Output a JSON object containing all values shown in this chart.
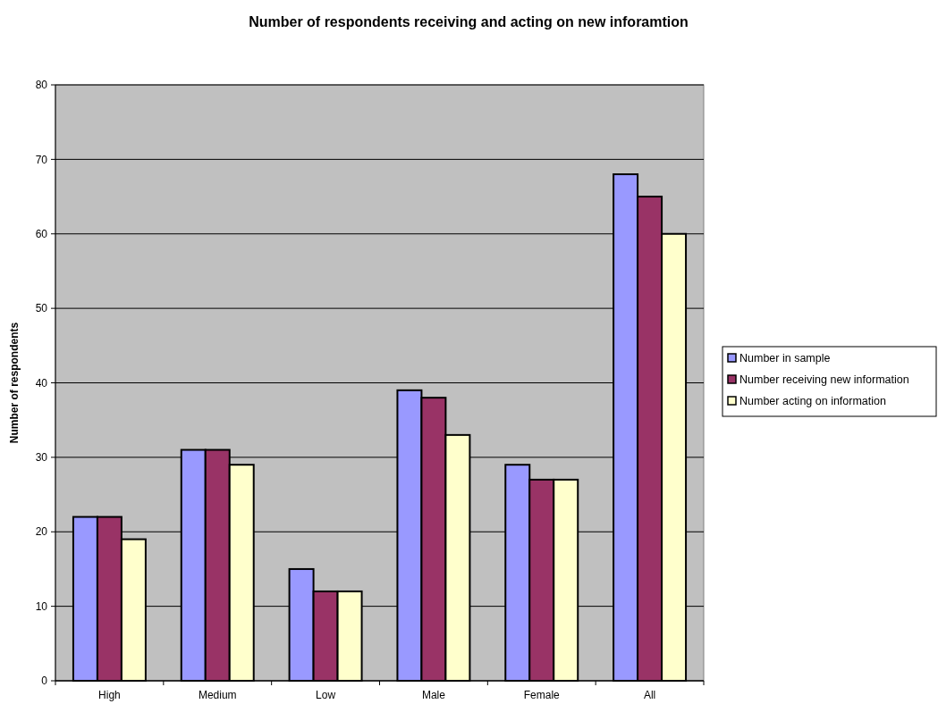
{
  "chart_data": {
    "type": "bar",
    "title": "Number of respondents receiving and acting on new inforamtion",
    "ylabel": "Number of respondents",
    "categories": [
      "High",
      "Medium",
      "Low",
      "Male",
      "Female",
      "All"
    ],
    "series": [
      {
        "name": "Number in sample",
        "color": "#9999ff",
        "values": [
          22,
          31,
          15,
          39,
          29,
          68
        ]
      },
      {
        "name": "Number receiving new information",
        "color": "#993366",
        "values": [
          22,
          31,
          12,
          38,
          27,
          65
        ]
      },
      {
        "name": "Number acting on information",
        "color": "#ffffcc",
        "values": [
          19,
          29,
          12,
          33,
          27,
          60
        ]
      }
    ],
    "ylim": [
      0,
      80
    ],
    "yticks": [
      0,
      10,
      20,
      30,
      40,
      50,
      60,
      70,
      80
    ],
    "grid": "y",
    "legend": "right"
  }
}
